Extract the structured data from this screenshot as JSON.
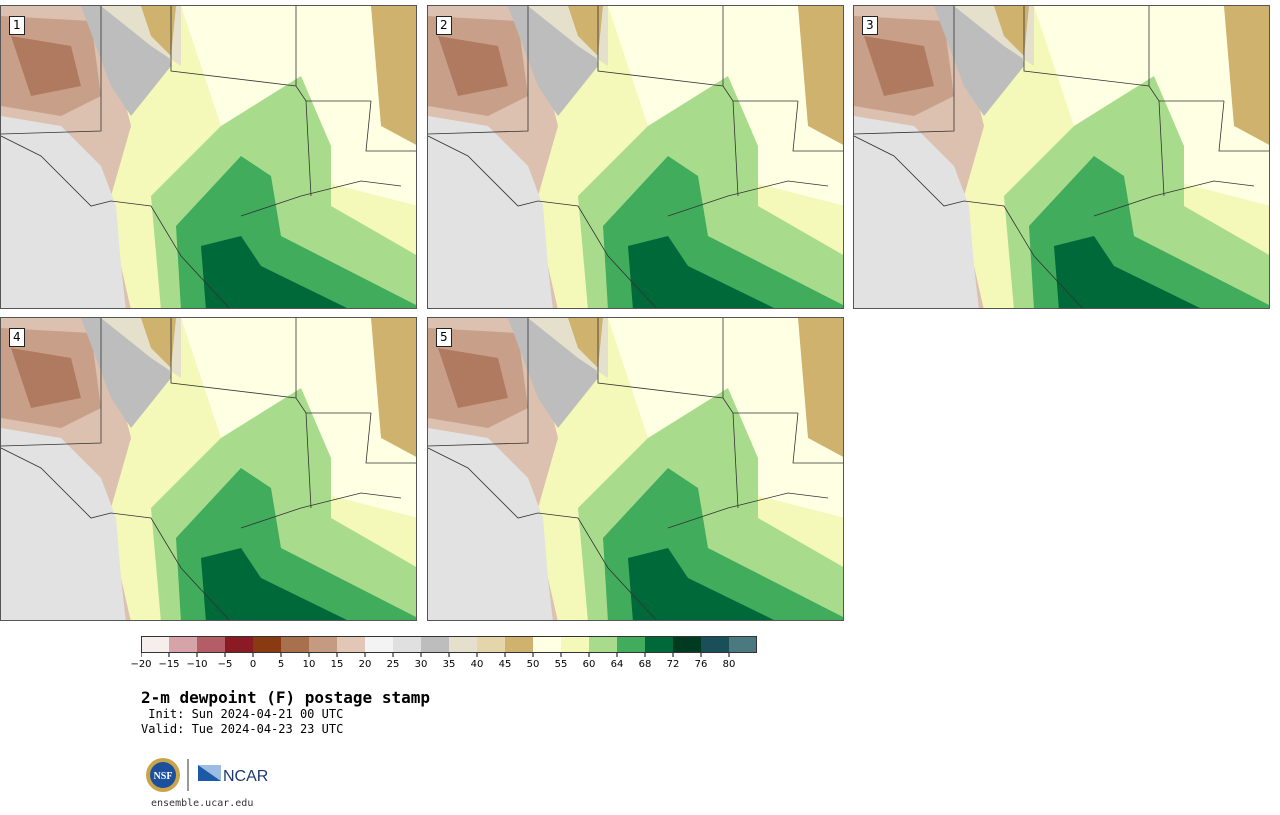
{
  "panels": [
    {
      "label": "1"
    },
    {
      "label": "2"
    },
    {
      "label": "3"
    },
    {
      "label": "4"
    },
    {
      "label": "5"
    }
  ],
  "colorbar": {
    "colors": [
      "#f6eeec",
      "#d6a3a8",
      "#b45d67",
      "#8a1a24",
      "#8a3a10",
      "#a8704c",
      "#c49a80",
      "#e2c6b6",
      "#f3f3f3",
      "#e0e0e0",
      "#bdbdbd",
      "#e4e0cc",
      "#e4d6aa",
      "#cfb26e",
      "#ffffe4",
      "#f4f8b8",
      "#a8dc8c",
      "#40ac5c",
      "#00693a",
      "#003a20",
      "#1a4f5a",
      "#4a7a80"
    ],
    "tick_labels": [
      "−20",
      "−15",
      "−10",
      "−5",
      "0",
      "5",
      "10",
      "15",
      "20",
      "25",
      "30",
      "35",
      "40",
      "45",
      "50",
      "55",
      "60",
      "64",
      "68",
      "72",
      "76",
      "80"
    ]
  },
  "title": "2-m dewpoint (F) postage stamp",
  "init_line": " Init: Sun 2024-04-21 00 UTC",
  "valid_line": "Valid: Tue 2024-04-23 23 UTC",
  "logos": {
    "nsf_text": "NSF",
    "ncar_text": "NCAR"
  },
  "footer": "ensemble.ucar.edu"
}
